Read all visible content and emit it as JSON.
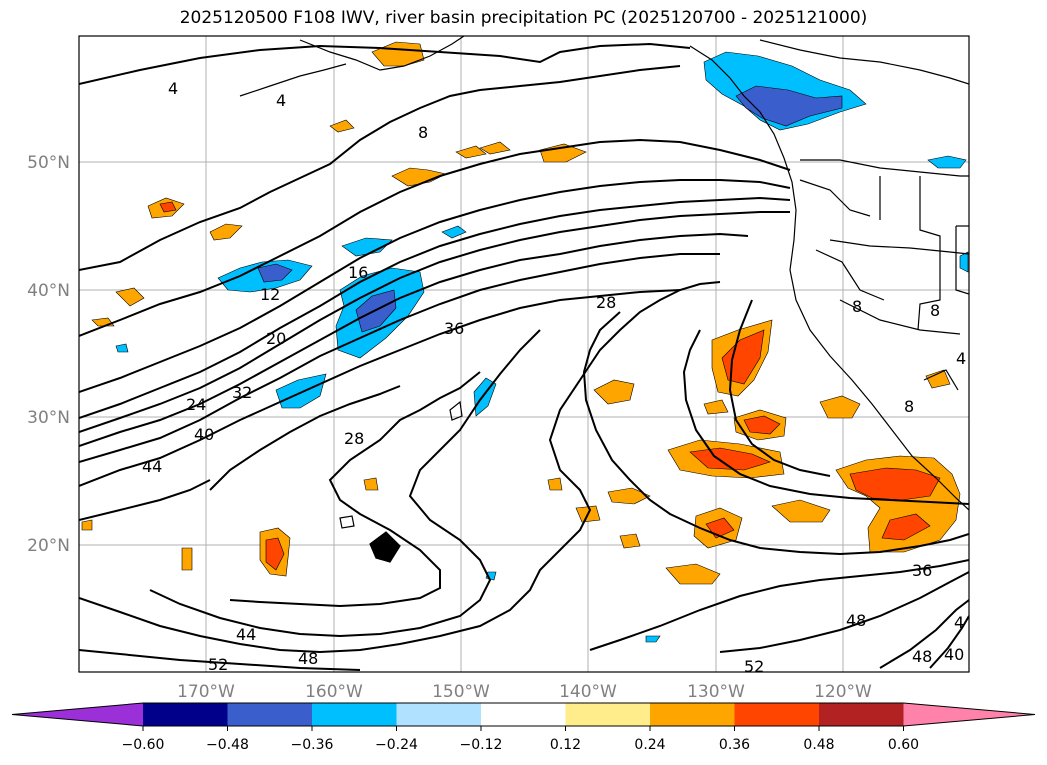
{
  "title": "2025120500 F108 IWV, river basin precipitation PC (2025120700 - 2025121000)",
  "lat_labels": [
    "50°N",
    "40°N",
    "30°N",
    "20°N"
  ],
  "lon_labels": [
    "170°W",
    "160°W",
    "150°W",
    "140°W",
    "130°W",
    "120°W"
  ],
  "colorbar": {
    "ticks": [
      "−0.60",
      "−0.48",
      "−0.36",
      "−0.24",
      "−0.12",
      "0.12",
      "0.24",
      "0.36",
      "0.48",
      "0.60"
    ],
    "colors": [
      "#9b30d8",
      "#00008b",
      "#3a5fcd",
      "#00bfff",
      "#b0e2ff",
      "#ffffff",
      "#ffec8b",
      "#ffa500",
      "#ff4500",
      "#b22222",
      "#ff82ab"
    ]
  },
  "contour_labels": [
    "4",
    "4",
    "8",
    "12",
    "16",
    "20",
    "24",
    "32",
    "40",
    "44",
    "28",
    "36",
    "28",
    "44",
    "52",
    "48",
    "52",
    "48",
    "36",
    "48",
    "40",
    "4",
    "8",
    "8",
    "4",
    "8"
  ],
  "colors": {
    "land_outline": "#000000",
    "grid": "#b0b0b0",
    "axis_label": "#808080"
  }
}
